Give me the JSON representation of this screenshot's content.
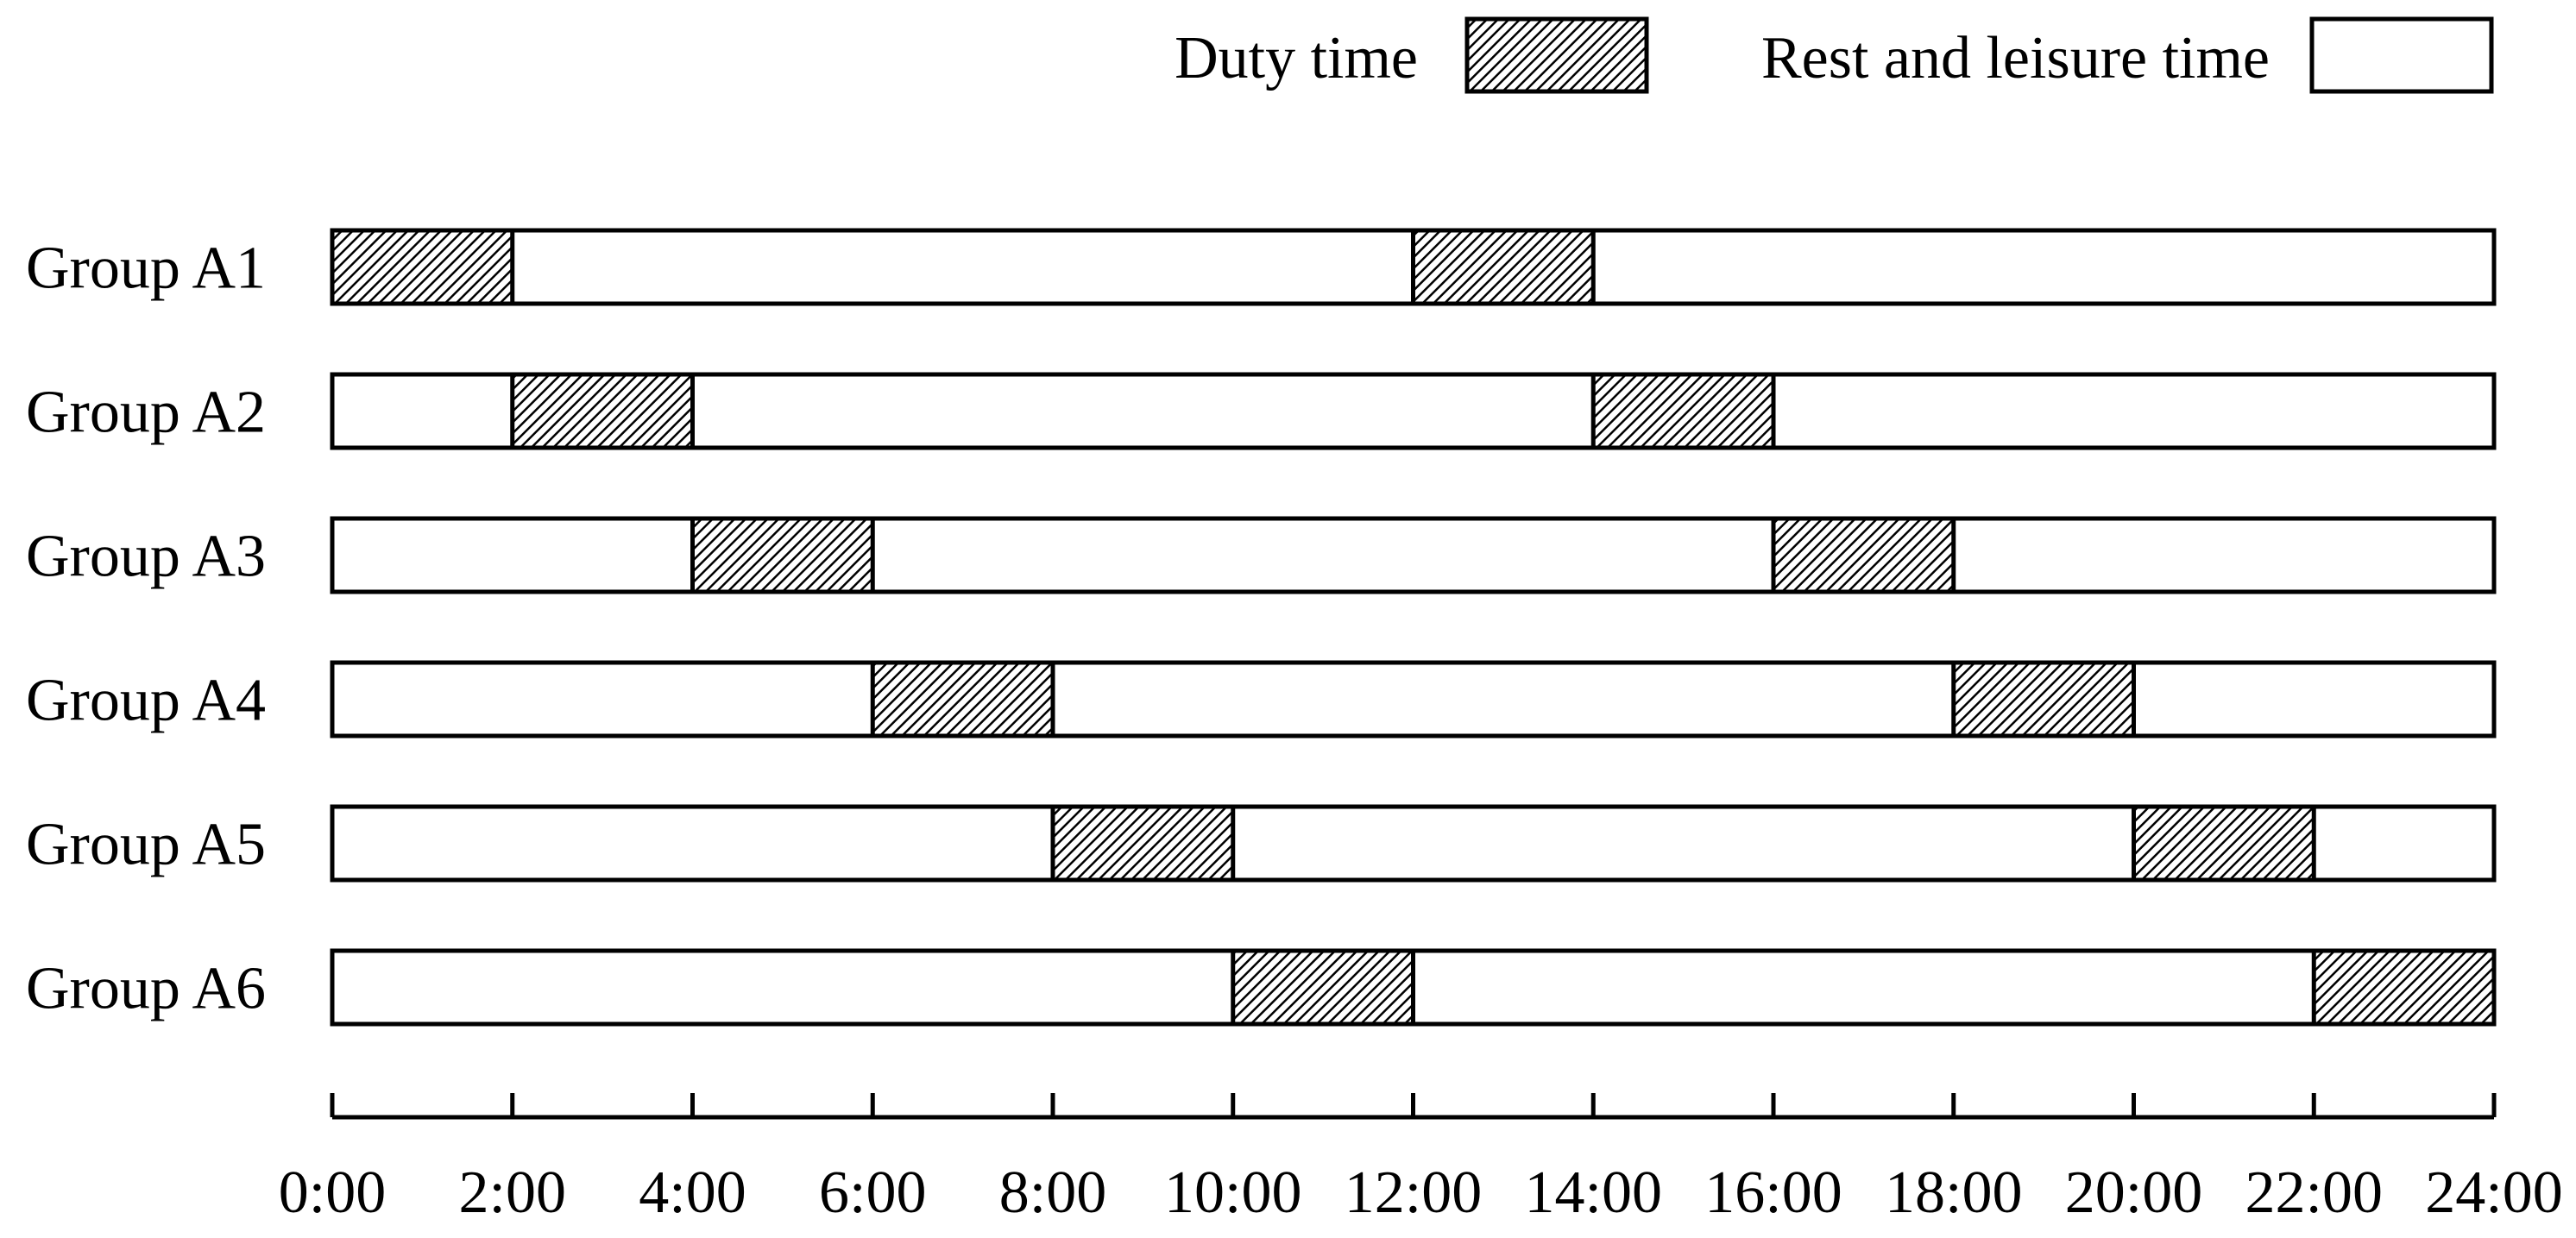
{
  "chart_data": {
    "type": "timeline",
    "title": "",
    "xlabel": "",
    "ylabel": "",
    "xlim": [
      0,
      24
    ],
    "x_ticks": [
      0,
      2,
      4,
      6,
      8,
      10,
      12,
      14,
      16,
      18,
      20,
      22,
      24
    ],
    "x_tick_labels": [
      "0:00",
      "2:00",
      "4:00",
      "6:00",
      "8:00",
      "10:00",
      "12:00",
      "14:00",
      "16:00",
      "18:00",
      "20:00",
      "22:00",
      "24:00"
    ],
    "legend": {
      "placement": "top-right",
      "items": [
        {
          "label": "Duty time",
          "pattern": "hatched"
        },
        {
          "label": "Rest and leisure time",
          "pattern": "blank"
        }
      ]
    },
    "grid": false,
    "groups": [
      {
        "name": "Group A1",
        "duty": [
          [
            0,
            2
          ],
          [
            12,
            14
          ]
        ]
      },
      {
        "name": "Group A2",
        "duty": [
          [
            2,
            4
          ],
          [
            14,
            16
          ]
        ]
      },
      {
        "name": "Group A3",
        "duty": [
          [
            4,
            6
          ],
          [
            16,
            18
          ]
        ]
      },
      {
        "name": "Group A4",
        "duty": [
          [
            6,
            8
          ],
          [
            18,
            20
          ]
        ]
      },
      {
        "name": "Group A5",
        "duty": [
          [
            8,
            10
          ],
          [
            20,
            22
          ]
        ]
      },
      {
        "name": "Group A6",
        "duty": [
          [
            10,
            12
          ],
          [
            22,
            24
          ]
        ]
      }
    ],
    "colors": {
      "stroke": "#000000",
      "fill": "#ffffff",
      "hatch": "#000000"
    }
  }
}
